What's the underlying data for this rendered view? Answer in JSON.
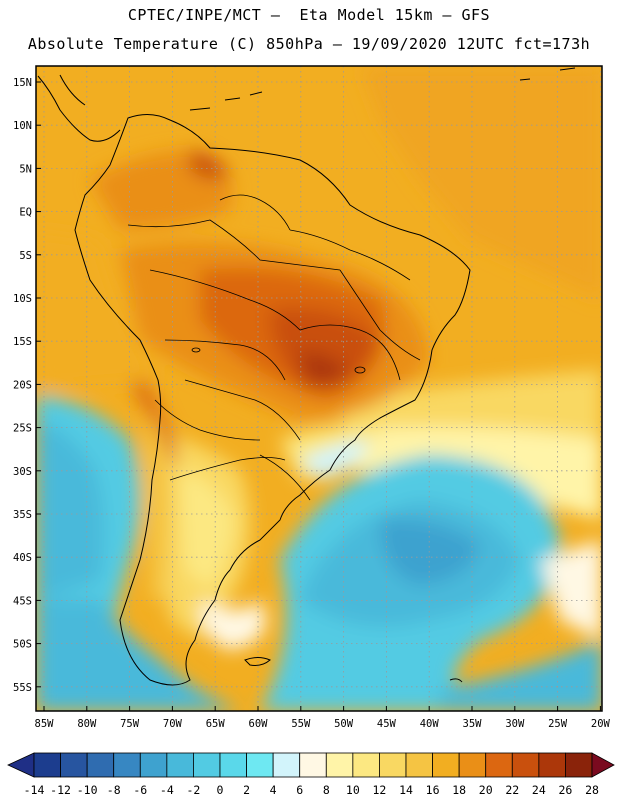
{
  "header": {
    "line1": "CPTEC/INPE/MCT –  Eta Model 15km – GFS",
    "line2": "Absolute Temperature (C) 850hPa – 19/09/2020 12UTC fct=173h"
  },
  "map": {
    "lat_labels": [
      "15N",
      "10N",
      "5N",
      "EQ",
      "5S",
      "10S",
      "15S",
      "20S",
      "25S",
      "30S",
      "35S",
      "40S",
      "45S",
      "50S",
      "55S"
    ],
    "lon_labels": [
      "85W",
      "80W",
      "75W",
      "70W",
      "65W",
      "60W",
      "55W",
      "50W",
      "45W",
      "40W",
      "35W",
      "30W",
      "25W",
      "20W"
    ],
    "grid_style": "dotted"
  },
  "colorbar": {
    "labels": [
      "-14",
      "-12",
      "-10",
      "-8",
      "-6",
      "-4",
      "-2",
      "0",
      "2",
      "4",
      "6",
      "8",
      "10",
      "12",
      "14",
      "16",
      "18",
      "20",
      "22",
      "24",
      "26",
      "28"
    ],
    "colors": [
      "#1c3d8e",
      "#2755a0",
      "#2f6cb0",
      "#3787c2",
      "#3ea2cf",
      "#48b9da",
      "#52cbe3",
      "#5ad8ea",
      "#6ee8f2",
      "#d2f4fb",
      "#fff8e4",
      "#fff4a8",
      "#fce882",
      "#f9d862",
      "#f5c443",
      "#f2ae21",
      "#ea8f17",
      "#dc6711",
      "#c9500d",
      "#ac370a",
      "#8a230a"
    ],
    "left_arrow_color": "#1f2f86",
    "right_arrow_color": "#7a0a1f"
  }
}
